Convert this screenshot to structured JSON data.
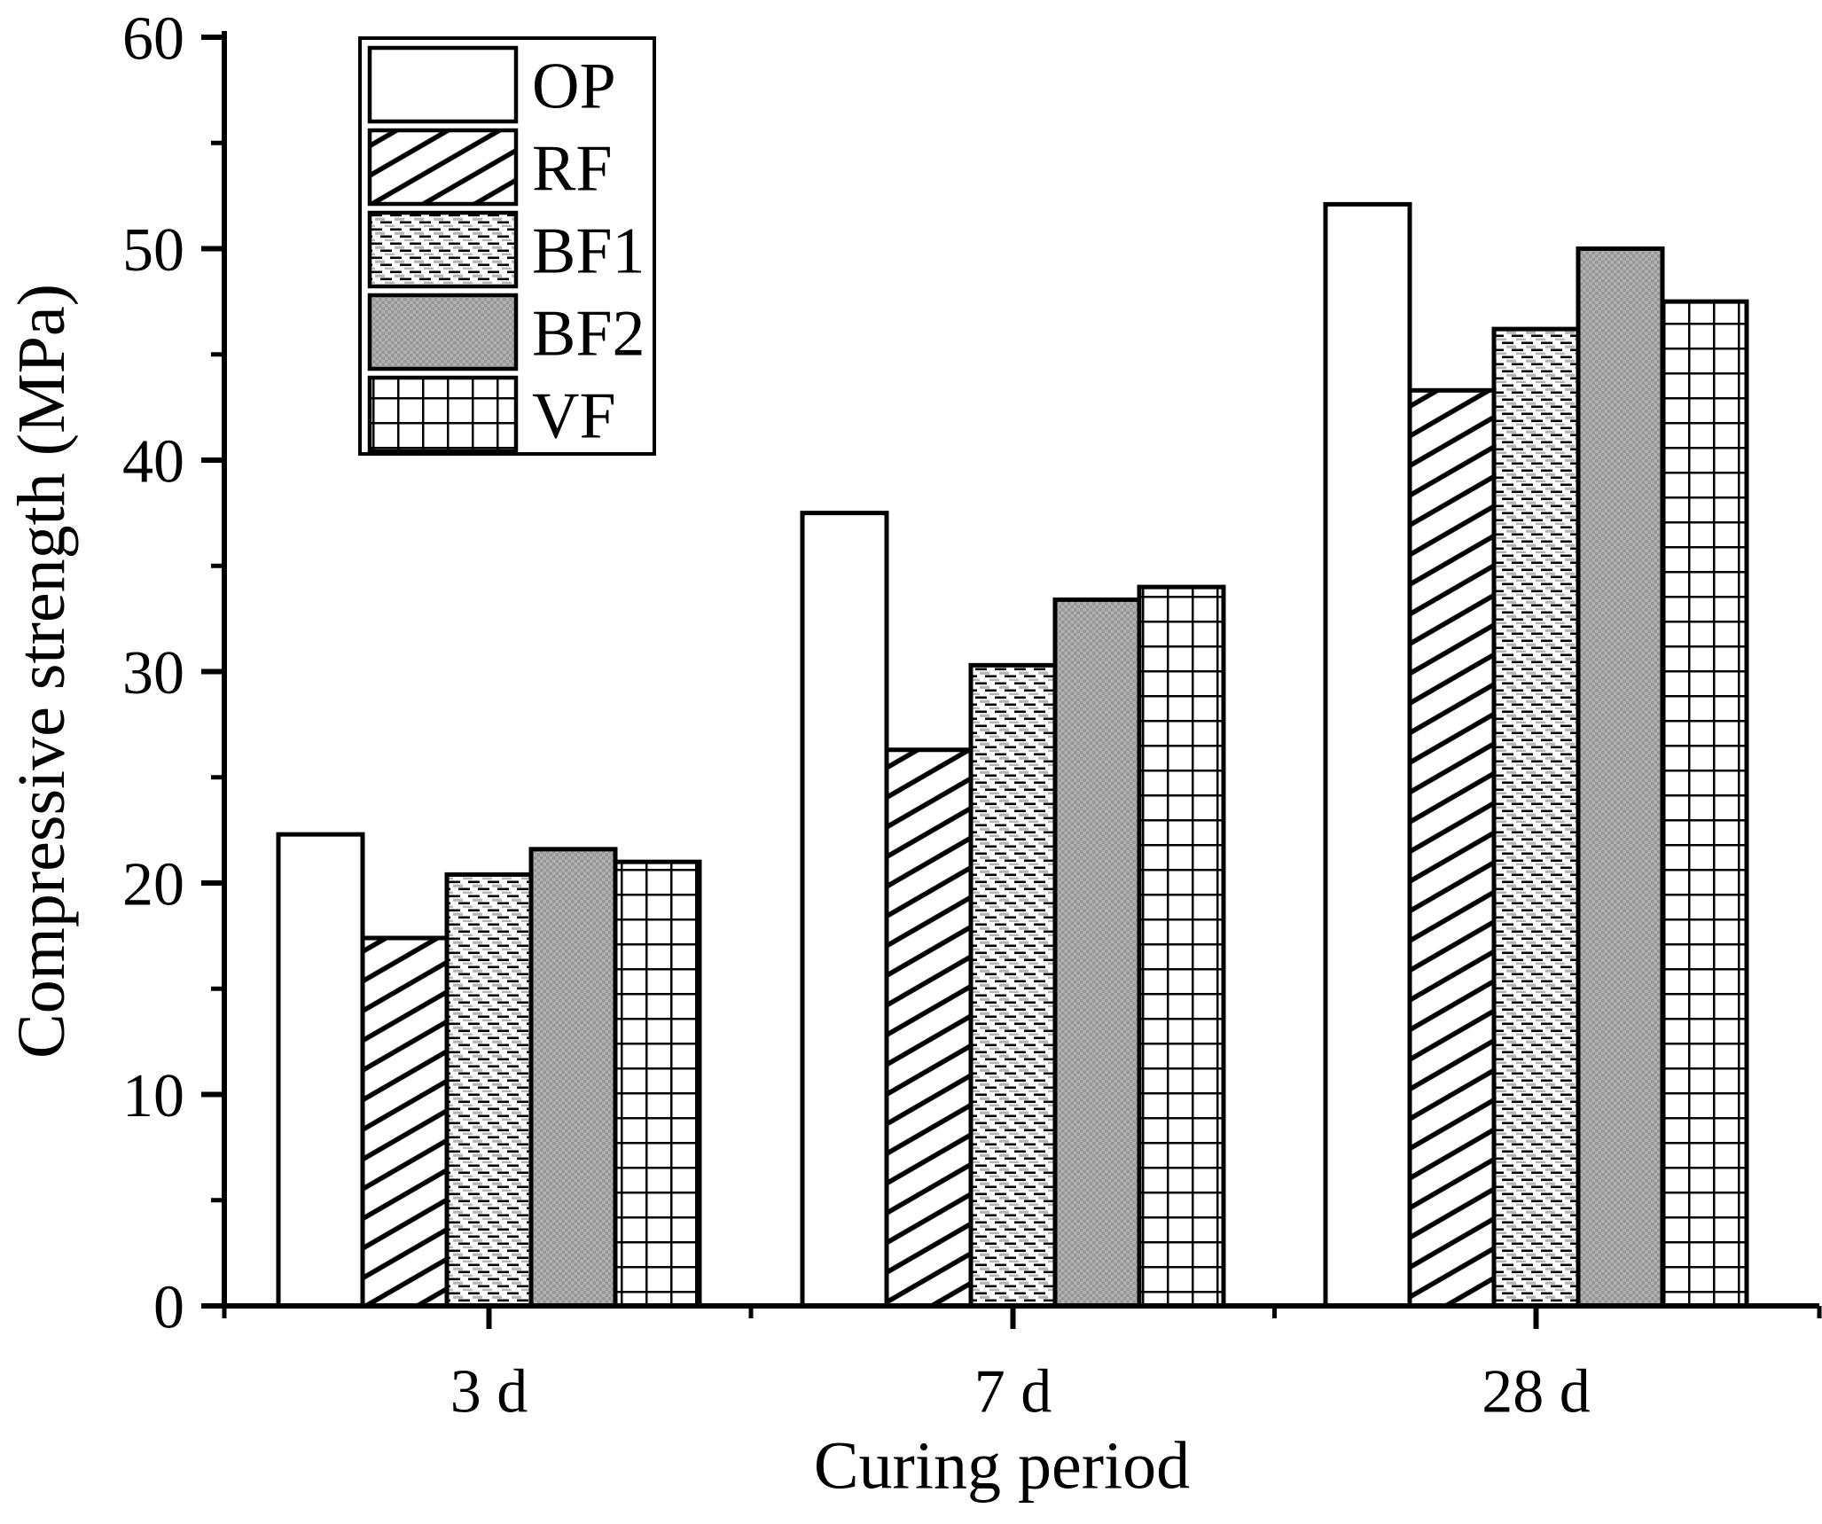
{
  "figure": {
    "background": "#ffffff"
  },
  "chart_data": {
    "type": "bar",
    "title": "",
    "xlabel": "Curing period",
    "ylabel": "Compressive strength (MPa)",
    "categories": [
      "3 d",
      "7 d",
      "28 d"
    ],
    "series": [
      {
        "name": "OP",
        "pattern": "solid-white",
        "values": [
          22.3,
          37.5,
          52.1
        ]
      },
      {
        "name": "RF",
        "pattern": "diagonal-hatch",
        "values": [
          17.4,
          26.3,
          43.3
        ]
      },
      {
        "name": "BF1",
        "pattern": "dash-dot",
        "values": [
          20.4,
          30.3,
          46.2
        ]
      },
      {
        "name": "BF2",
        "pattern": "gray-weave",
        "values": [
          21.6,
          33.4,
          50.0
        ]
      },
      {
        "name": "VF",
        "pattern": "grid",
        "values": [
          21.0,
          34.0,
          47.5
        ]
      }
    ],
    "ylim": [
      0,
      60
    ],
    "yticks": [
      0,
      10,
      20,
      30,
      40,
      50,
      60
    ],
    "yticks_minor": [
      5,
      15,
      25,
      35,
      45,
      55
    ],
    "grid": false,
    "legend_position": "top-left",
    "legend_items": [
      "OP",
      "RF",
      "BF1",
      "BF2",
      "VF"
    ]
  },
  "colors": {
    "axis": "#000000",
    "bar_outline": "#000000",
    "bf1_dash_gray": "#b5b5b5",
    "bf2_gray_light": "#b2b2b2",
    "bf2_gray_dark": "#969696",
    "background": "#ffffff"
  }
}
